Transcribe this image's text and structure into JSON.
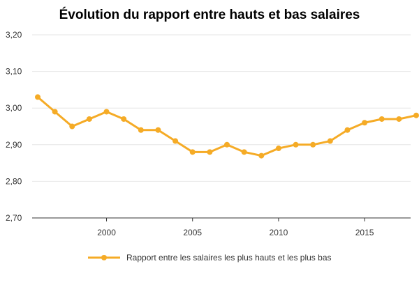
{
  "chart_data": {
    "type": "line",
    "title": "Évolution du rapport entre hauts et bas salaires",
    "xlabel": "",
    "ylabel": "",
    "x": [
      1996,
      1997,
      1998,
      1999,
      2000,
      2001,
      2002,
      2003,
      2004,
      2005,
      2006,
      2007,
      2008,
      2009,
      2010,
      2011,
      2012,
      2013,
      2014,
      2015,
      2016,
      2017,
      2018
    ],
    "series": [
      {
        "name": "Rapport entre les salaires les plus hauts et les plus bas",
        "color": "#F5AB26",
        "values": [
          3.03,
          2.99,
          2.95,
          2.97,
          2.99,
          2.97,
          2.94,
          2.94,
          2.91,
          2.88,
          2.88,
          2.9,
          2.88,
          2.87,
          2.89,
          2.9,
          2.9,
          2.91,
          2.94,
          2.96,
          2.97,
          2.97,
          2.98
        ]
      }
    ],
    "xlim": [
      1996,
      2018
    ],
    "ylim": [
      2.7,
      3.2
    ],
    "x_ticks": [
      2000,
      2005,
      2010,
      2015
    ],
    "x_tick_labels": [
      "2000",
      "2005",
      "2010",
      "2015"
    ],
    "y_ticks": [
      2.7,
      2.8,
      2.9,
      3.0,
      3.1,
      3.2
    ],
    "y_tick_labels": [
      "2,70",
      "2,80",
      "2,90",
      "3,00",
      "3,10",
      "3,20"
    ],
    "grid": true,
    "legend_position": "bottom-center",
    "colors": {
      "grid": "#e6e6e6",
      "axis": "#333333",
      "text": "#333333",
      "title": "#000000"
    }
  }
}
